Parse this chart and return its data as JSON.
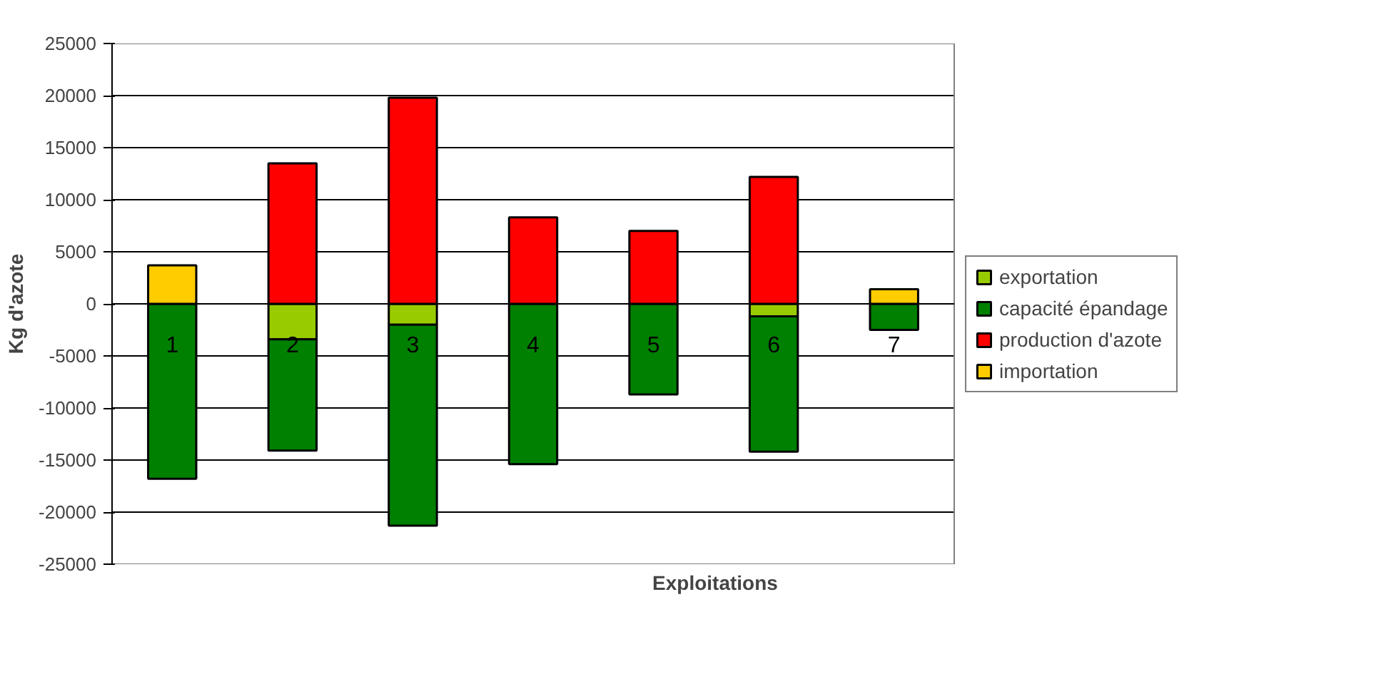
{
  "chart_data": {
    "type": "bar",
    "stacked": true,
    "xlabel": "Exploitations",
    "ylabel": "Kg d'azote",
    "categories": [
      "1",
      "2",
      "3",
      "4",
      "5",
      "6",
      "7"
    ],
    "series": [
      {
        "name": "exportation",
        "color": "#99cc00",
        "values": [
          null,
          -3400,
          -2000,
          null,
          null,
          -1200,
          null
        ]
      },
      {
        "name": "capacité épandage",
        "color": "#008000",
        "values": [
          -16800,
          -10700,
          -19300,
          -15400,
          -8700,
          -13000,
          -2500
        ]
      },
      {
        "name": "production d'azote",
        "color": "#ff0000",
        "values": [
          null,
          13500,
          19800,
          8300,
          7000,
          12200,
          null
        ]
      },
      {
        "name": "importation",
        "color": "#ffcc00",
        "values": [
          3700,
          null,
          null,
          null,
          null,
          null,
          1400
        ]
      }
    ],
    "ylim": [
      -25000,
      25000
    ],
    "yticks": [
      -25000,
      -20000,
      -15000,
      -10000,
      -5000,
      0,
      5000,
      10000,
      15000,
      20000,
      25000
    ],
    "grid": "y",
    "legend": "right"
  }
}
